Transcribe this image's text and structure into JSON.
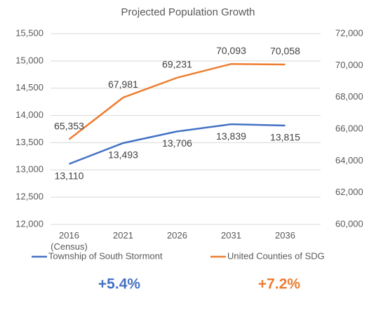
{
  "chart_data": {
    "type": "line",
    "title": "Projected Population Growth",
    "categories": [
      "2016\n(Census)",
      "2021",
      "2026",
      "2031",
      "2036"
    ],
    "series": [
      {
        "name": "Township of South Stormont",
        "color": "#4472c4",
        "values": [
          13110,
          13493,
          13706,
          13839,
          13815
        ],
        "value_labels": [
          "13,110",
          "13,493",
          "13,706",
          "13,839",
          "13,815"
        ]
      },
      {
        "name": "United Counties of SDG",
        "color": "#ed7d31",
        "axis": "y2",
        "values": [
          65353,
          67981,
          69231,
          70093,
          70058
        ],
        "value_labels": [
          "65,353",
          "67,981",
          "69,231",
          "70,093",
          "70,058"
        ]
      }
    ],
    "ylim": [
      12000,
      15500
    ],
    "yticks": [
      {
        "value": 12000,
        "label": "12,000"
      },
      {
        "value": 12500,
        "label": "12,500"
      },
      {
        "value": 13000,
        "label": "13,000"
      },
      {
        "value": 13500,
        "label": "13,500"
      },
      {
        "value": 14000,
        "label": "14,000"
      },
      {
        "value": 14500,
        "label": "14,500"
      },
      {
        "value": 15000,
        "label": "15,000"
      },
      {
        "value": 15500,
        "label": "15,500"
      }
    ],
    "y2lim": [
      60000,
      72000
    ],
    "y2ticks": [
      {
        "value": 60000,
        "label": "60,000"
      },
      {
        "value": 62000,
        "label": "62,000"
      },
      {
        "value": 64000,
        "label": "64,000"
      },
      {
        "value": 66000,
        "label": "66,000"
      },
      {
        "value": 68000,
        "label": "68,000"
      },
      {
        "value": 70000,
        "label": "70,000"
      },
      {
        "value": 72000,
        "label": "72,000"
      }
    ],
    "grid": true,
    "legend": "bottom",
    "annotations": [
      {
        "text": "+5.4%",
        "color": "#4472c4"
      },
      {
        "text": "+7.2%",
        "color": "#ed7d31"
      }
    ]
  }
}
